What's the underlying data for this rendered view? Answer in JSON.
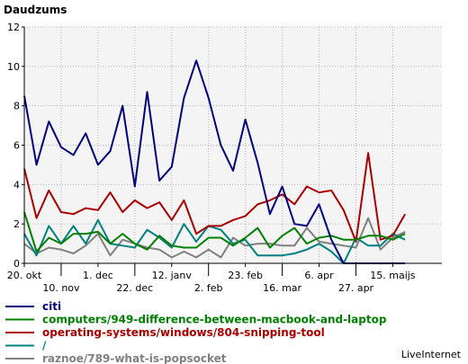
{
  "chart_data": {
    "type": "line",
    "title": "Daudzums",
    "credit": "LiveInternet",
    "ylim": [
      0,
      12
    ],
    "y_ticks": [
      0,
      2,
      4,
      6,
      8,
      10,
      12
    ],
    "grid": true,
    "x_index_range": [
      0,
      34
    ],
    "x_ticks": [
      {
        "i": 0,
        "label": "20. okt",
        "row": 1
      },
      {
        "i": 3,
        "label": "10. nov",
        "row": 2
      },
      {
        "i": 6,
        "label": "1. dec",
        "row": 1
      },
      {
        "i": 9,
        "label": "22. dec",
        "row": 2
      },
      {
        "i": 12,
        "label": "12. janv",
        "row": 1
      },
      {
        "i": 15,
        "label": "2. feb",
        "row": 2
      },
      {
        "i": 18,
        "label": "23. feb",
        "row": 1
      },
      {
        "i": 21,
        "label": "16. mar",
        "row": 2
      },
      {
        "i": 24,
        "label": "6. apr",
        "row": 1
      },
      {
        "i": 27,
        "label": "27. apr",
        "row": 2
      },
      {
        "i": 30,
        "label": "15. maijs",
        "row": 1
      }
    ],
    "legend_position": "bottom",
    "series": [
      {
        "name": "citi",
        "color": "#000080",
        "values": [
          8.5,
          5.0,
          7.2,
          5.9,
          5.5,
          6.6,
          5.0,
          5.7,
          8.0,
          3.9,
          8.7,
          4.2,
          4.9,
          8.4,
          10.3,
          8.4,
          6.0,
          4.7,
          7.3,
          5.1,
          2.5,
          3.9,
          2.0,
          1.9,
          3.0,
          1.2,
          0.0,
          0.0,
          0.0,
          0.0,
          0.0,
          0.0
        ]
      },
      {
        "name": "computers/949-difference-between-macbook-and-laptop",
        "color": "#008000",
        "values": [
          2.6,
          0.6,
          1.3,
          1.0,
          1.5,
          1.5,
          1.6,
          1.0,
          1.5,
          1.0,
          0.7,
          1.4,
          0.9,
          0.8,
          0.8,
          1.3,
          1.3,
          0.9,
          1.3,
          1.8,
          0.8,
          1.4,
          1.8,
          1.0,
          1.3,
          1.4,
          1.2,
          1.2,
          1.4,
          1.4,
          1.2,
          1.5
        ]
      },
      {
        "name": "operating-systems/windows/804-snipping-tool",
        "color": "#aa0000",
        "values": [
          4.8,
          2.3,
          3.7,
          2.6,
          2.5,
          2.8,
          2.7,
          3.6,
          2.6,
          3.2,
          2.8,
          3.1,
          2.2,
          3.2,
          1.5,
          1.9,
          1.9,
          2.2,
          2.4,
          3.0,
          3.2,
          3.5,
          3.0,
          3.9,
          3.6,
          3.7,
          2.7,
          1.1,
          5.6,
          1.2,
          1.4,
          2.5
        ]
      },
      {
        "name": "/",
        "color": "#008080",
        "values": [
          1.5,
          0.4,
          1.9,
          1.0,
          1.9,
          1.0,
          2.2,
          1.0,
          0.9,
          0.8,
          1.7,
          1.3,
          0.8,
          2.0,
          1.1,
          1.9,
          1.7,
          1.0,
          1.2,
          0.4,
          0.4,
          0.4,
          0.5,
          0.7,
          1.0,
          0.6,
          0.0,
          1.3,
          0.9,
          0.9,
          1.5,
          1.2
        ]
      },
      {
        "name": "raznoe/789-what-is-popsocket",
        "color": "#808080",
        "values": [
          1.0,
          0.5,
          0.8,
          0.7,
          0.5,
          0.9,
          1.5,
          0.4,
          1.2,
          1.0,
          0.8,
          0.7,
          0.3,
          0.6,
          0.3,
          0.7,
          0.3,
          1.3,
          0.9,
          1.0,
          1.0,
          0.9,
          0.9,
          1.8,
          1.1,
          1.0,
          0.9,
          0.8,
          2.3,
          0.7,
          1.3,
          1.6
        ]
      }
    ]
  }
}
